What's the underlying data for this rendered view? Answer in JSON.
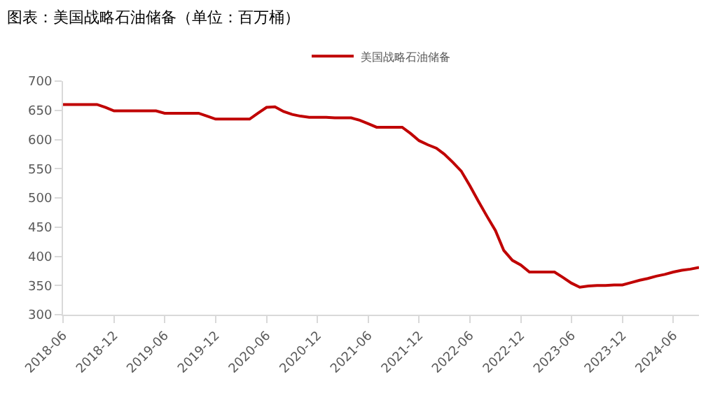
{
  "chart_data": {
    "type": "line",
    "title": "图表：美国战略石油储备（单位：百万桶）",
    "x": [
      "2018-06",
      "2018-07",
      "2018-08",
      "2018-09",
      "2018-10",
      "2018-11",
      "2018-12",
      "2019-01",
      "2019-02",
      "2019-03",
      "2019-04",
      "2019-05",
      "2019-06",
      "2019-07",
      "2019-08",
      "2019-09",
      "2019-10",
      "2019-11",
      "2019-12",
      "2020-01",
      "2020-02",
      "2020-03",
      "2020-04",
      "2020-05",
      "2020-06",
      "2020-07",
      "2020-08",
      "2020-09",
      "2020-10",
      "2020-11",
      "2020-12",
      "2021-01",
      "2021-02",
      "2021-03",
      "2021-04",
      "2021-05",
      "2021-06",
      "2021-07",
      "2021-08",
      "2021-09",
      "2021-10",
      "2021-11",
      "2021-12",
      "2022-01",
      "2022-02",
      "2022-03",
      "2022-04",
      "2022-05",
      "2022-06",
      "2022-07",
      "2022-08",
      "2022-09",
      "2022-10",
      "2022-11",
      "2022-12",
      "2023-01",
      "2023-02",
      "2023-03",
      "2023-04",
      "2023-05",
      "2023-06",
      "2023-07",
      "2023-08",
      "2023-09",
      "2023-10",
      "2023-11",
      "2023-12",
      "2024-01",
      "2024-02",
      "2024-03",
      "2024-04",
      "2024-05",
      "2024-06",
      "2024-07",
      "2024-08",
      "2024-09"
    ],
    "series": [
      {
        "name": "美国战略石油储备",
        "color": "#c00000",
        "values": [
          660,
          660,
          660,
          660,
          660,
          655,
          649,
          649,
          649,
          649,
          649,
          649,
          645,
          645,
          645,
          645,
          645,
          640,
          635,
          635,
          635,
          635,
          635,
          645,
          655,
          656,
          648,
          643,
          640,
          638,
          638,
          638,
          637,
          637,
          637,
          633,
          627,
          621,
          621,
          621,
          621,
          610,
          598,
          591,
          585,
          575,
          561,
          546,
          521,
          495,
          469,
          444,
          410,
          393,
          385,
          373,
          373,
          373,
          373,
          364,
          354,
          347,
          349,
          350,
          350,
          351,
          351,
          355,
          359,
          362,
          366,
          369,
          373,
          376,
          378,
          381
        ]
      }
    ],
    "xlim": [
      "2018-06",
      "2024-09"
    ],
    "xticks": [
      {
        "value": "2018-06",
        "label": "2018-06"
      },
      {
        "value": "2018-12",
        "label": "2018-12"
      },
      {
        "value": "2019-06",
        "label": "2019-06"
      },
      {
        "value": "2019-12",
        "label": "2019-12"
      },
      {
        "value": "2020-06",
        "label": "2020-06"
      },
      {
        "value": "2020-12",
        "label": "2020-12"
      },
      {
        "value": "2021-06",
        "label": "2021-06"
      },
      {
        "value": "2021-12",
        "label": "2021-12"
      },
      {
        "value": "2022-06",
        "label": "2022-06"
      },
      {
        "value": "2022-12",
        "label": "2022-12"
      },
      {
        "value": "2023-06",
        "label": "2023-06"
      },
      {
        "value": "2023-12",
        "label": "2023-12"
      },
      {
        "value": "2024-06",
        "label": "2024-06"
      }
    ],
    "ylim": [
      300,
      700
    ],
    "yticks": [
      300,
      350,
      400,
      450,
      500,
      550,
      600,
      650,
      700
    ],
    "legend": "top",
    "marker": "none",
    "line_style": "solid"
  }
}
